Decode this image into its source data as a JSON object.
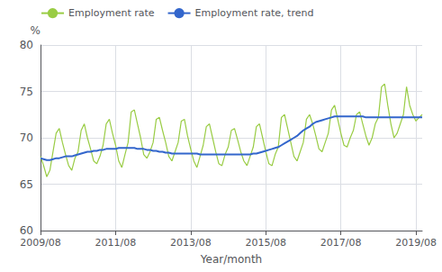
{
  "chart_data": {
    "type": "line",
    "xlabel": "Year/month",
    "ylabel": "%",
    "categories": [
      "2009/08",
      null,
      null,
      null,
      null,
      null,
      null,
      null,
      null,
      null,
      null,
      null,
      null,
      null,
      null,
      null,
      null,
      null,
      null,
      null,
      null,
      null,
      null,
      null,
      "2011/08",
      null,
      null,
      null,
      null,
      null,
      null,
      null,
      null,
      null,
      null,
      null,
      null,
      null,
      null,
      null,
      null,
      null,
      null,
      null,
      null,
      null,
      null,
      null,
      "2013/08",
      null,
      null,
      null,
      null,
      null,
      null,
      null,
      null,
      null,
      null,
      null,
      null,
      null,
      null,
      null,
      null,
      null,
      null,
      null,
      null,
      null,
      null,
      null,
      "2015/08",
      null,
      null,
      null,
      null,
      null,
      null,
      null,
      null,
      null,
      null,
      null,
      null,
      null,
      null,
      null,
      null,
      null,
      null,
      null,
      null,
      null,
      null,
      null,
      "2017/08",
      null,
      null,
      null,
      null,
      null,
      null,
      null,
      null,
      null,
      null,
      null,
      null,
      null,
      null,
      null,
      null,
      null,
      null,
      null,
      null,
      null,
      null,
      null,
      "2019/08",
      null,
      null
    ],
    "series": [
      {
        "name": "Employment rate",
        "color": "#99cc44",
        "values": [
          68.0,
          67.0,
          65.8,
          66.5,
          68.5,
          70.5,
          71.0,
          69.5,
          68.2,
          67.0,
          66.5,
          67.8,
          68.5,
          70.8,
          71.5,
          70.0,
          68.8,
          67.5,
          67.2,
          68.0,
          69.2,
          71.5,
          72.0,
          70.5,
          69.2,
          67.5,
          66.8,
          68.2,
          69.5,
          72.8,
          73.0,
          71.5,
          70.0,
          68.2,
          67.8,
          68.5,
          69.5,
          72.0,
          72.2,
          70.8,
          69.5,
          68.0,
          67.5,
          68.5,
          69.5,
          71.8,
          72.0,
          70.2,
          68.8,
          67.5,
          66.8,
          68.0,
          69.2,
          71.2,
          71.5,
          70.0,
          68.5,
          67.2,
          67.0,
          68.2,
          69.0,
          70.8,
          71.0,
          69.8,
          68.5,
          67.5,
          67.0,
          68.0,
          69.0,
          71.2,
          71.5,
          70.0,
          68.5,
          67.2,
          67.0,
          68.2,
          69.0,
          72.2,
          72.5,
          71.0,
          69.5,
          68.0,
          67.5,
          68.5,
          69.5,
          72.0,
          72.5,
          71.5,
          70.2,
          68.8,
          68.5,
          69.5,
          70.5,
          73.0,
          73.5,
          72.0,
          70.5,
          69.2,
          69.0,
          70.0,
          70.8,
          72.5,
          72.8,
          71.5,
          70.2,
          69.2,
          70.0,
          71.5,
          72.2,
          75.5,
          75.8,
          73.5,
          71.5,
          70.0,
          70.5,
          71.5,
          72.5,
          75.5,
          73.5,
          72.5,
          71.8,
          72.2,
          72.5
        ]
      },
      {
        "name": "Employment rate, trend",
        "color": "#3366cc",
        "values": [
          67.8,
          67.7,
          67.6,
          67.6,
          67.7,
          67.8,
          67.8,
          67.9,
          68.0,
          68.0,
          68.0,
          68.1,
          68.2,
          68.3,
          68.4,
          68.5,
          68.5,
          68.6,
          68.6,
          68.7,
          68.7,
          68.8,
          68.8,
          68.8,
          68.8,
          68.9,
          68.9,
          68.9,
          68.9,
          68.9,
          68.9,
          68.8,
          68.8,
          68.8,
          68.7,
          68.7,
          68.6,
          68.6,
          68.5,
          68.5,
          68.4,
          68.4,
          68.3,
          68.3,
          68.3,
          68.3,
          68.3,
          68.3,
          68.3,
          68.3,
          68.3,
          68.2,
          68.2,
          68.2,
          68.2,
          68.2,
          68.2,
          68.2,
          68.2,
          68.2,
          68.2,
          68.2,
          68.2,
          68.2,
          68.2,
          68.2,
          68.2,
          68.2,
          68.3,
          68.3,
          68.4,
          68.5,
          68.6,
          68.7,
          68.8,
          68.9,
          69.0,
          69.2,
          69.4,
          69.6,
          69.8,
          70.0,
          70.2,
          70.5,
          70.8,
          71.0,
          71.2,
          71.5,
          71.7,
          71.8,
          71.9,
          72.0,
          72.1,
          72.2,
          72.3,
          72.3,
          72.3,
          72.3,
          72.3,
          72.3,
          72.3,
          72.3,
          72.3,
          72.3,
          72.2,
          72.2,
          72.2,
          72.2,
          72.2,
          72.2,
          72.2,
          72.2,
          72.2,
          72.2,
          72.2,
          72.2,
          72.2,
          72.2,
          72.2,
          72.2,
          72.2,
          72.2,
          72.2
        ]
      }
    ],
    "ylim": [
      60,
      80
    ],
    "yticks": [
      60,
      65,
      70,
      75,
      80
    ],
    "grid": true,
    "legend": "upper left"
  }
}
